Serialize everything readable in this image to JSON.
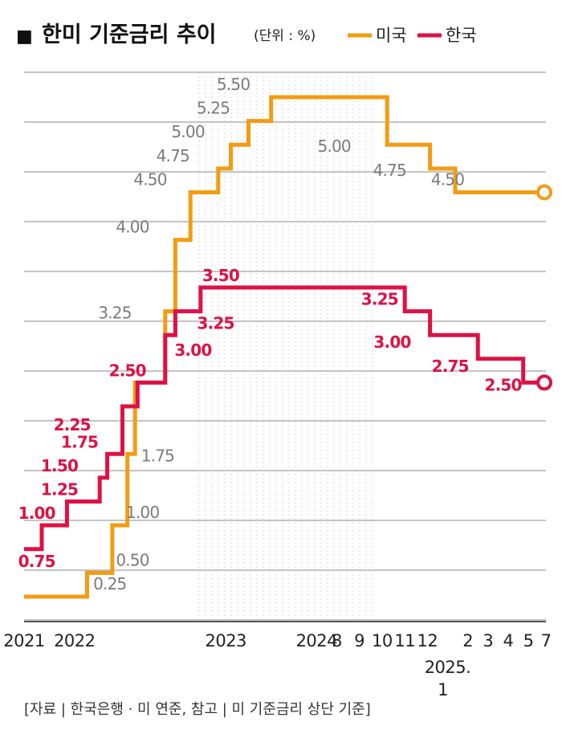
{
  "title_marker": "■",
  "title": "한미 기준금리 추이",
  "unit": "(단위 : %)",
  "legend": [
    {
      "label": "미국",
      "color": "#f39c12"
    },
    {
      "label": "한국",
      "color": "#dd1145"
    }
  ],
  "source": "[자료 | 한국은행 · 미 연준, 참고 | 미 기준금리 상단 기준]",
  "chart_data": {
    "type": "line",
    "step": true,
    "title": "한미 기준금리 추이",
    "ylabel": "단위 : %",
    "ylim": [
      0,
      5.5
    ],
    "grid": true,
    "x_ticks": [
      {
        "label": "2021",
        "x": 0
      },
      {
        "label": "2022",
        "x": 2
      },
      {
        "label": "2023",
        "x": 8
      },
      {
        "label": "2024",
        "x": 11.6
      },
      {
        "label": "8",
        "x": 12.4
      },
      {
        "label": "9",
        "x": 13.3
      },
      {
        "label": "10",
        "x": 14.2
      },
      {
        "label": "11",
        "x": 15.1
      },
      {
        "label": "12",
        "x": 16
      },
      {
        "label": "2",
        "x": 17.6
      },
      {
        "label": "3",
        "x": 18.4
      },
      {
        "label": "4",
        "x": 19.2
      },
      {
        "label": "5",
        "x": 20
      },
      {
        "label": "7",
        "x": 20.7
      }
    ],
    "x_extra_label": {
      "line1": "2025.",
      "line2": "1",
      "x": 16.8
    },
    "series": [
      {
        "name": "미국",
        "color": "#f39c12",
        "points": [
          {
            "x": 0,
            "y": 0.25
          },
          {
            "x": 2.5,
            "y": 0.25
          },
          {
            "x": 2.5,
            "y": 0.5
          },
          {
            "x": 3.5,
            "y": 0.5
          },
          {
            "x": 3.5,
            "y": 1.0
          },
          {
            "x": 4.1,
            "y": 1.0
          },
          {
            "x": 4.1,
            "y": 1.75
          },
          {
            "x": 4.4,
            "y": 1.75
          },
          {
            "x": 4.4,
            "y": 2.5
          },
          {
            "x": 5.6,
            "y": 2.5
          },
          {
            "x": 5.6,
            "y": 3.25
          },
          {
            "x": 6.0,
            "y": 3.25
          },
          {
            "x": 6.0,
            "y": 4.0
          },
          {
            "x": 6.6,
            "y": 4.0
          },
          {
            "x": 6.6,
            "y": 4.5
          },
          {
            "x": 7.7,
            "y": 4.5
          },
          {
            "x": 7.7,
            "y": 4.75
          },
          {
            "x": 8.2,
            "y": 4.75
          },
          {
            "x": 8.2,
            "y": 5.0
          },
          {
            "x": 8.9,
            "y": 5.0
          },
          {
            "x": 8.9,
            "y": 5.25
          },
          {
            "x": 9.8,
            "y": 5.25
          },
          {
            "x": 9.8,
            "y": 5.5
          },
          {
            "x": 14.4,
            "y": 5.5
          },
          {
            "x": 14.4,
            "y": 5.0
          },
          {
            "x": 16.1,
            "y": 5.0
          },
          {
            "x": 16.1,
            "y": 4.75
          },
          {
            "x": 17.1,
            "y": 4.75
          },
          {
            "x": 17.1,
            "y": 4.5
          },
          {
            "x": 20.7,
            "y": 4.5
          }
        ],
        "labels": [
          {
            "text": "0.25",
            "x": 3.4,
            "y": 0.25
          },
          {
            "text": "0.50",
            "x": 4.3,
            "y": 0.5
          },
          {
            "text": "1.00",
            "x": 4.7,
            "y": 1.0
          },
          {
            "text": "1.75",
            "x": 5.3,
            "y": 1.75
          },
          {
            "text": "3.25",
            "x": 3.6,
            "y": 3.25
          },
          {
            "text": "4.00",
            "x": 4.3,
            "y": 4.0
          },
          {
            "text": "4.50",
            "x": 5.0,
            "y": 4.5
          },
          {
            "text": "4.75",
            "x": 5.9,
            "y": 4.75
          },
          {
            "text": "5.00",
            "x": 6.5,
            "y": 5.0
          },
          {
            "text": "5.25",
            "x": 7.5,
            "y": 5.25
          },
          {
            "text": "5.50",
            "x": 8.3,
            "y": 5.5
          },
          {
            "text": "5.00",
            "x": 12.3,
            "y": 5.0
          },
          {
            "text": "4.75",
            "x": 14.5,
            "y": 4.75
          },
          {
            "text": "4.50",
            "x": 16.8,
            "y": 4.5
          }
        ]
      },
      {
        "name": "한국",
        "color": "#dd1145",
        "points": [
          {
            "x": 0,
            "y": 0.75
          },
          {
            "x": 0.7,
            "y": 0.75
          },
          {
            "x": 0.7,
            "y": 1.0
          },
          {
            "x": 1.7,
            "y": 1.0
          },
          {
            "x": 1.7,
            "y": 1.25
          },
          {
            "x": 3.0,
            "y": 1.25
          },
          {
            "x": 3.0,
            "y": 1.5
          },
          {
            "x": 3.3,
            "y": 1.5
          },
          {
            "x": 3.3,
            "y": 1.75
          },
          {
            "x": 3.9,
            "y": 1.75
          },
          {
            "x": 3.9,
            "y": 2.25
          },
          {
            "x": 4.5,
            "y": 2.25
          },
          {
            "x": 4.5,
            "y": 2.5
          },
          {
            "x": 5.6,
            "y": 2.5
          },
          {
            "x": 5.6,
            "y": 3.0
          },
          {
            "x": 6.0,
            "y": 3.0
          },
          {
            "x": 6.0,
            "y": 3.25
          },
          {
            "x": 7.0,
            "y": 3.25
          },
          {
            "x": 7.0,
            "y": 3.5
          },
          {
            "x": 15.1,
            "y": 3.5
          },
          {
            "x": 15.1,
            "y": 3.25
          },
          {
            "x": 16.1,
            "y": 3.25
          },
          {
            "x": 16.1,
            "y": 3.0
          },
          {
            "x": 18.0,
            "y": 3.0
          },
          {
            "x": 18.0,
            "y": 2.75
          },
          {
            "x": 19.8,
            "y": 2.75
          },
          {
            "x": 19.8,
            "y": 2.5
          },
          {
            "x": 20.7,
            "y": 2.5
          }
        ],
        "labels": [
          {
            "text": "0.75",
            "x": 0.5,
            "y": 0.75
          },
          {
            "text": "1.00",
            "x": 0.5,
            "y": 1.0
          },
          {
            "text": "1.25",
            "x": 1.4,
            "y": 1.25
          },
          {
            "text": "1.50",
            "x": 1.4,
            "y": 1.5
          },
          {
            "text": "1.75",
            "x": 2.2,
            "y": 1.75
          },
          {
            "text": "2.25",
            "x": 1.9,
            "y": 2.25
          },
          {
            "text": "2.50",
            "x": 4.1,
            "y": 2.5
          },
          {
            "text": "3.00",
            "x": 6.7,
            "y": 3.0
          },
          {
            "text": "3.25",
            "x": 7.6,
            "y": 3.25
          },
          {
            "text": "3.50",
            "x": 7.8,
            "y": 3.5
          },
          {
            "text": "3.25",
            "x": 14.1,
            "y": 3.25
          },
          {
            "text": "3.00",
            "x": 14.6,
            "y": 3.0
          },
          {
            "text": "2.75",
            "x": 16.9,
            "y": 2.75
          },
          {
            "text": "2.50",
            "x": 19.0,
            "y": 2.5
          }
        ]
      }
    ]
  }
}
